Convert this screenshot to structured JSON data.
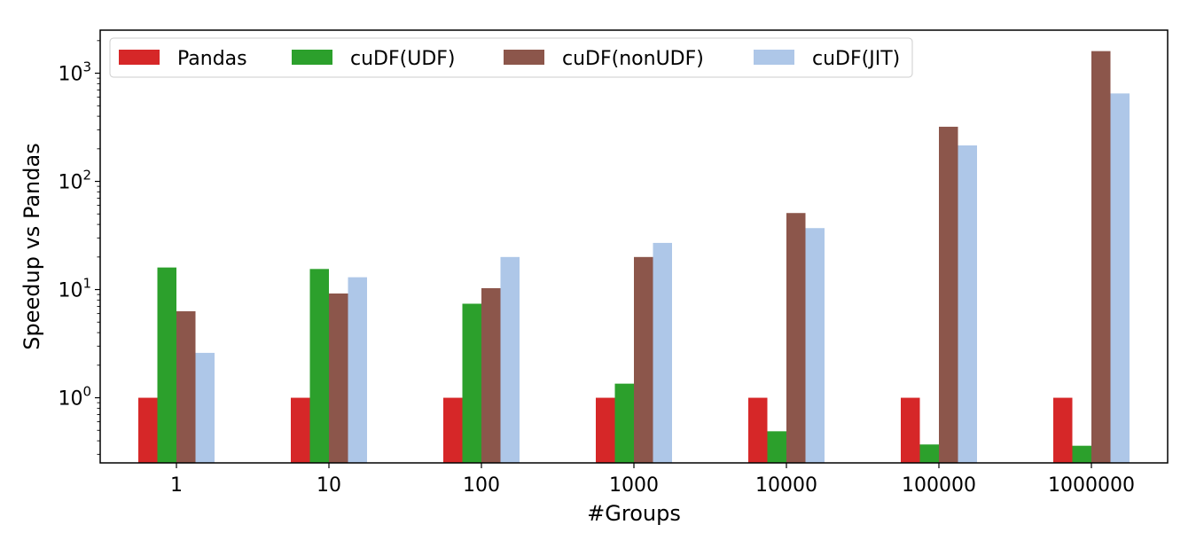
{
  "chart_data": {
    "type": "bar",
    "categories": [
      "1",
      "10",
      "100",
      "1000",
      "10000",
      "100000",
      "1000000"
    ],
    "series": [
      {
        "name": "Pandas",
        "color": "#d62728",
        "values": [
          1,
          1,
          1,
          1,
          1,
          1,
          1
        ]
      },
      {
        "name": "cuDF(UDF)",
        "color": "#2ca02c",
        "values": [
          16,
          15.5,
          7.4,
          1.35,
          0.49,
          0.37,
          0.36
        ]
      },
      {
        "name": "cuDF(nonUDF)",
        "color": "#8c564b",
        "values": [
          6.3,
          9.2,
          10.3,
          20,
          51,
          320,
          1600
        ]
      },
      {
        "name": "cuDF(JIT)",
        "color": "#aec7e8",
        "values": [
          2.6,
          13,
          20,
          27,
          37,
          215,
          650
        ]
      }
    ],
    "xlabel": "#Groups",
    "ylabel": "Speedup vs Pandas",
    "yscale": "log",
    "ylim": [
      0.25,
      2500
    ],
    "yticks": [
      {
        "value": 1,
        "base": "10",
        "exp": "0"
      },
      {
        "value": 10,
        "base": "10",
        "exp": "1"
      },
      {
        "value": 100,
        "base": "10",
        "exp": "2"
      },
      {
        "value": 1000,
        "base": "10",
        "exp": "3"
      }
    ],
    "legend": {
      "position": "top-left",
      "columns": 4
    },
    "grid": false
  }
}
